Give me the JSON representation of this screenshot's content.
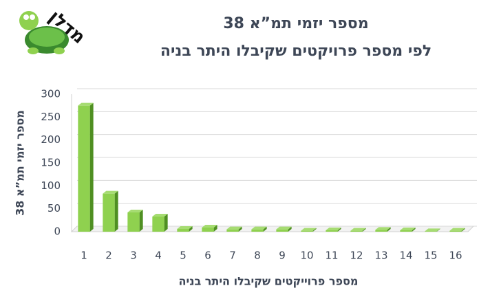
{
  "logo": "מדלן",
  "chart_data": {
    "type": "bar",
    "title": "מספר יזמי תמ”א 38",
    "subtitle": "לפי מספר פרויקטים שקיבלו היתר בניה",
    "x_label": "מספר פרוייקטים שקיבלו היתר בניה",
    "y_label": "מספר יזמי תמ”א 38",
    "categories": [
      "1",
      "2",
      "3",
      "4",
      "5",
      "6",
      "7",
      "8",
      "9",
      "10",
      "11",
      "12",
      "13",
      "14",
      "15",
      "16"
    ],
    "values": [
      275,
      83,
      42,
      33,
      6,
      9,
      5,
      5,
      5,
      2,
      3,
      2,
      4,
      3,
      1,
      2
    ],
    "color": "#8fd14f",
    "ylim": [
      0,
      300
    ],
    "yticks": [
      0,
      50,
      100,
      150,
      200,
      250,
      300
    ],
    "grid": true
  }
}
